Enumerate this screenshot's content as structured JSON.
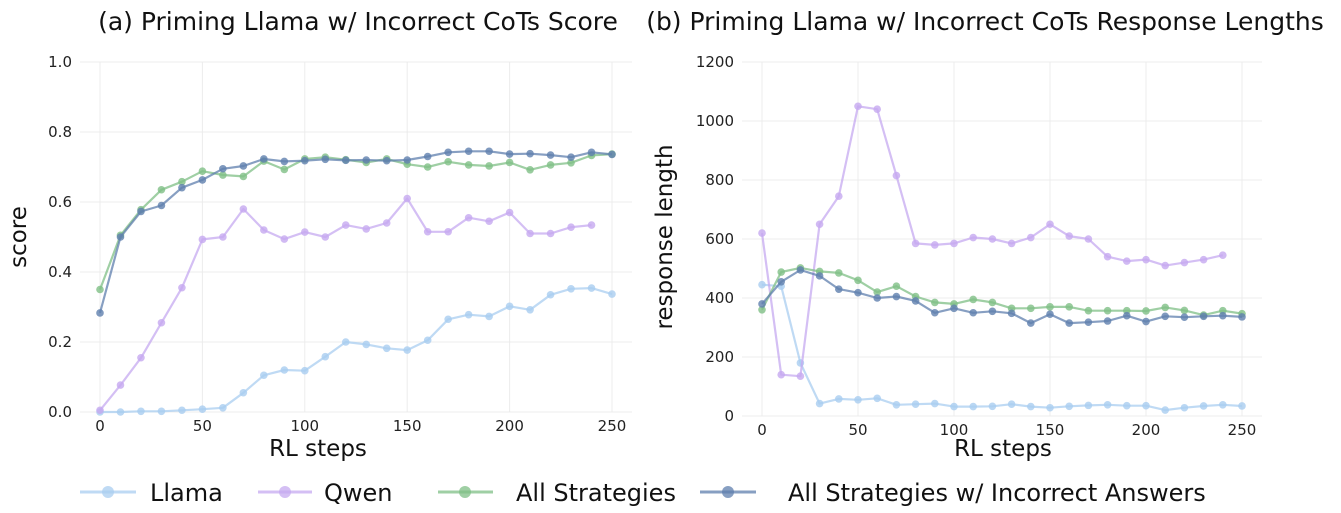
{
  "legend": [
    {
      "label": "Llama",
      "color": "#a9cdf0"
    },
    {
      "label": "Qwen",
      "color": "#c6a9f0"
    },
    {
      "label": "All Strategies",
      "color": "#7fbf86"
    },
    {
      "label": "All Strategies w/ Incorrect Answers",
      "color": "#5f7fae"
    }
  ],
  "chart_data": [
    {
      "type": "line",
      "title": "(a) Priming Llama w/ Incorrect CoTs Score",
      "xlabel": "RL steps",
      "ylabel": "score",
      "xlim": [
        0,
        250
      ],
      "ylim": [
        0,
        1.0
      ],
      "xticks": [
        0,
        50,
        100,
        150,
        200,
        250
      ],
      "yticks": [
        0.0,
        0.2,
        0.4,
        0.6,
        0.8,
        1.0
      ],
      "grid": true,
      "series": [
        {
          "name": "Llama",
          "color": "#a9cdf0",
          "x": [
            0,
            10,
            20,
            30,
            40,
            50,
            60,
            70,
            80,
            90,
            100,
            110,
            120,
            130,
            140,
            150,
            160,
            170,
            180,
            190,
            200,
            210,
            220,
            230,
            240,
            250
          ],
          "y": [
            0.0,
            0.0,
            0.002,
            0.002,
            0.005,
            0.008,
            0.012,
            0.055,
            0.105,
            0.12,
            0.118,
            0.158,
            0.2,
            0.193,
            0.182,
            0.177,
            0.205,
            0.265,
            0.278,
            0.273,
            0.302,
            0.292,
            0.335,
            0.352,
            0.354,
            0.337
          ]
        },
        {
          "name": "Qwen",
          "color": "#c6a9f0",
          "x": [
            0,
            10,
            20,
            30,
            40,
            50,
            60,
            70,
            80,
            90,
            100,
            110,
            120,
            130,
            140,
            150,
            160,
            170,
            180,
            190,
            200,
            210,
            220,
            230,
            240
          ],
          "y": [
            0.005,
            0.077,
            0.155,
            0.255,
            0.355,
            0.493,
            0.5,
            0.58,
            0.52,
            0.494,
            0.514,
            0.5,
            0.534,
            0.523,
            0.54,
            0.61,
            0.515,
            0.515,
            0.555,
            0.545,
            0.57,
            0.51,
            0.51,
            0.528,
            0.534
          ]
        },
        {
          "name": "All Strategies",
          "color": "#7fbf86",
          "x": [
            0,
            10,
            20,
            30,
            40,
            50,
            60,
            70,
            80,
            90,
            100,
            110,
            120,
            130,
            140,
            150,
            160,
            170,
            180,
            190,
            200,
            210,
            220,
            230,
            240,
            250
          ],
          "y": [
            0.35,
            0.505,
            0.578,
            0.635,
            0.658,
            0.688,
            0.677,
            0.673,
            0.717,
            0.693,
            0.723,
            0.728,
            0.721,
            0.713,
            0.723,
            0.708,
            0.7,
            0.715,
            0.706,
            0.703,
            0.713,
            0.692,
            0.706,
            0.712,
            0.733,
            0.737
          ]
        },
        {
          "name": "All Strategies w/ Incorrect Answers",
          "color": "#5f7fae",
          "x": [
            0,
            10,
            20,
            30,
            40,
            50,
            60,
            70,
            80,
            90,
            100,
            110,
            120,
            130,
            140,
            150,
            160,
            170,
            180,
            190,
            200,
            210,
            220,
            230,
            240,
            250
          ],
          "y": [
            0.283,
            0.5,
            0.573,
            0.59,
            0.641,
            0.663,
            0.695,
            0.703,
            0.723,
            0.716,
            0.718,
            0.722,
            0.719,
            0.72,
            0.718,
            0.72,
            0.73,
            0.742,
            0.745,
            0.745,
            0.737,
            0.738,
            0.734,
            0.728,
            0.742,
            0.736
          ]
        }
      ]
    },
    {
      "type": "line",
      "title": "(b) Priming Llama w/ Incorrect CoTs Response Lengths",
      "xlabel": "RL steps",
      "ylabel": "response length",
      "xlim": [
        0,
        250
      ],
      "ylim": [
        0,
        1200
      ],
      "xticks": [
        0,
        50,
        100,
        150,
        200,
        250
      ],
      "yticks": [
        0,
        200,
        400,
        600,
        800,
        1000,
        1200
      ],
      "grid": true,
      "series": [
        {
          "name": "Llama",
          "color": "#a9cdf0",
          "x": [
            0,
            10,
            20,
            30,
            40,
            50,
            60,
            70,
            80,
            90,
            100,
            110,
            120,
            130,
            140,
            150,
            160,
            170,
            180,
            190,
            200,
            210,
            220,
            230,
            240,
            250
          ],
          "y": [
            445,
            440,
            180,
            42,
            58,
            55,
            60,
            38,
            40,
            42,
            32,
            32,
            33,
            40,
            32,
            28,
            33,
            36,
            38,
            35,
            35,
            20,
            28,
            34,
            38,
            34
          ]
        },
        {
          "name": "Qwen",
          "color": "#c6a9f0",
          "x": [
            0,
            10,
            20,
            30,
            40,
            50,
            60,
            70,
            80,
            90,
            100,
            110,
            120,
            130,
            140,
            150,
            160,
            170,
            180,
            190,
            200,
            210,
            220,
            230,
            240
          ],
          "y": [
            620,
            140,
            135,
            650,
            745,
            1050,
            1040,
            815,
            585,
            580,
            585,
            605,
            600,
            585,
            605,
            650,
            610,
            600,
            540,
            525,
            530,
            510,
            520,
            530,
            545
          ]
        },
        {
          "name": "All Strategies",
          "color": "#7fbf86",
          "x": [
            0,
            10,
            20,
            30,
            40,
            50,
            60,
            70,
            80,
            90,
            100,
            110,
            120,
            130,
            140,
            150,
            160,
            170,
            180,
            190,
            200,
            210,
            220,
            230,
            240,
            250
          ],
          "y": [
            360,
            488,
            502,
            490,
            485,
            460,
            420,
            440,
            405,
            385,
            380,
            395,
            385,
            365,
            365,
            370,
            370,
            357,
            357,
            357,
            356,
            368,
            358,
            342,
            357,
            347
          ]
        },
        {
          "name": "All Strategies w/ Incorrect Answers",
          "color": "#5f7fae",
          "x": [
            0,
            10,
            20,
            30,
            40,
            50,
            60,
            70,
            80,
            90,
            100,
            110,
            120,
            130,
            140,
            150,
            160,
            170,
            180,
            190,
            200,
            210,
            220,
            230,
            240,
            250
          ],
          "y": [
            380,
            455,
            495,
            475,
            430,
            418,
            400,
            405,
            390,
            350,
            365,
            350,
            355,
            348,
            315,
            345,
            315,
            318,
            322,
            340,
            320,
            338,
            335,
            338,
            340,
            336
          ]
        }
      ]
    }
  ]
}
